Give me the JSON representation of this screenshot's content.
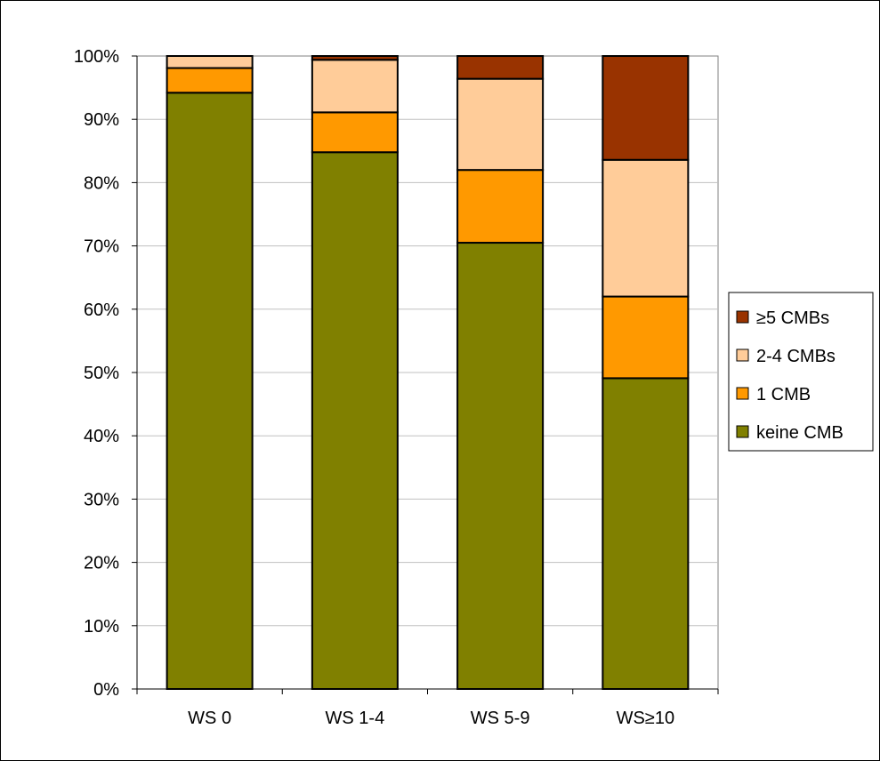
{
  "chart_data": {
    "type": "bar",
    "stacked": true,
    "normalized": true,
    "title": "",
    "xlabel": "",
    "ylabel": "",
    "ylim": [
      0,
      100
    ],
    "y_ticks": [
      "0%",
      "10%",
      "20%",
      "30%",
      "40%",
      "50%",
      "60%",
      "70%",
      "80%",
      "90%",
      "100%"
    ],
    "grid": true,
    "legend_position": "right",
    "categories": [
      "WS 0",
      "WS 1-4",
      "WS 5-9",
      "WS≥10"
    ],
    "series": [
      {
        "name": "keine CMB",
        "color": "#808000",
        "values": [
          94.2,
          84.8,
          70.5,
          49.1
        ]
      },
      {
        "name": "1 CMB",
        "color": "#FF9900",
        "values": [
          3.9,
          6.3,
          11.5,
          12.9
        ]
      },
      {
        "name": "2-4 CMBs",
        "color": "#FFCC99",
        "values": [
          1.9,
          8.3,
          14.4,
          21.6
        ]
      },
      {
        "name": "≥5 CMBs",
        "color": "#993300",
        "values": [
          0.0,
          0.6,
          3.6,
          16.4
        ]
      }
    ],
    "legend_order": [
      "≥5 CMBs",
      "2-4 CMBs",
      "1 CMB",
      "keine CMB"
    ]
  }
}
